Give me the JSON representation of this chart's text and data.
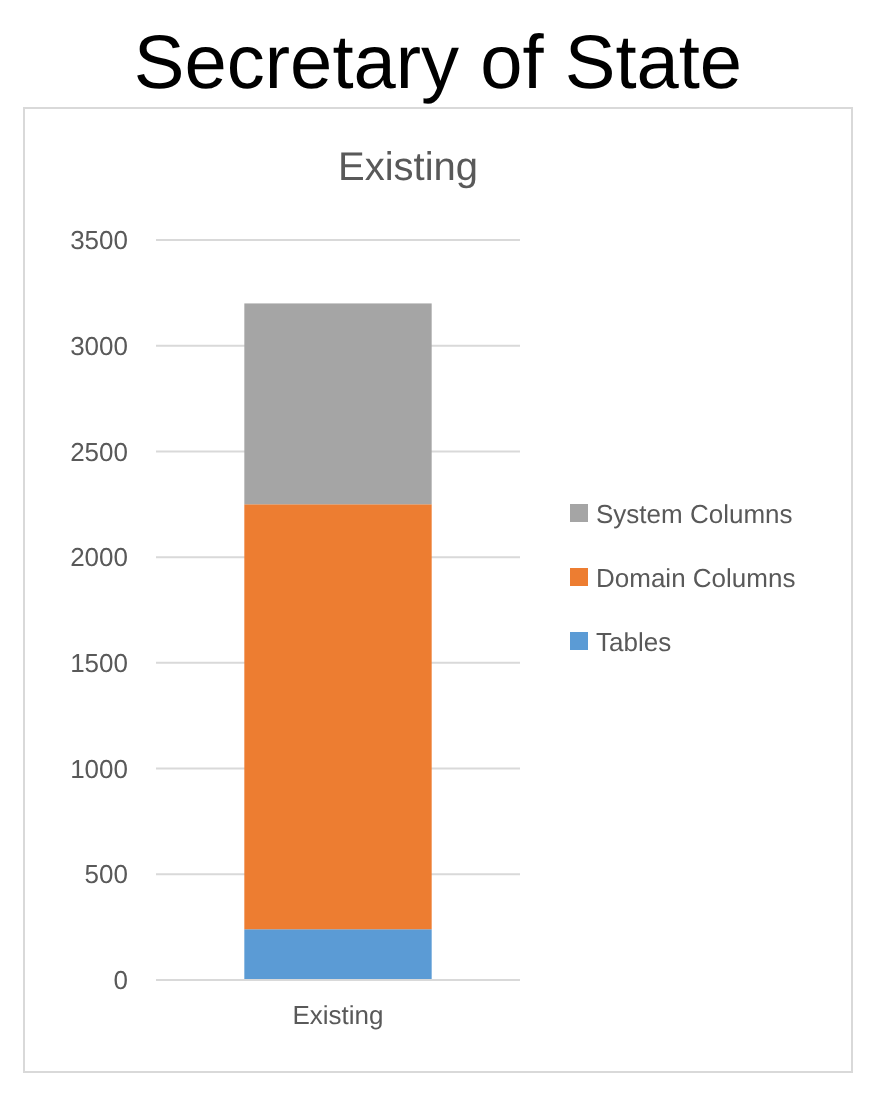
{
  "chart_data": {
    "type": "bar",
    "title": "Existing",
    "annotations": [
      "Secretary of State"
    ],
    "categories": [
      "Existing"
    ],
    "stacked": true,
    "series": [
      {
        "name": "Tables",
        "color": "#5b9bd5",
        "values": [
          240
        ]
      },
      {
        "name": "Domain Columns",
        "color": "#ed7d31",
        "values": [
          2010
        ]
      },
      {
        "name": "System Columns",
        "color": "#a5a5a5",
        "values": [
          950
        ]
      }
    ],
    "ylim": [
      0,
      3500
    ],
    "yticks": [
      0,
      500,
      1000,
      1500,
      2000,
      2500,
      3000,
      3500
    ],
    "grid": "y",
    "legend": "right"
  }
}
